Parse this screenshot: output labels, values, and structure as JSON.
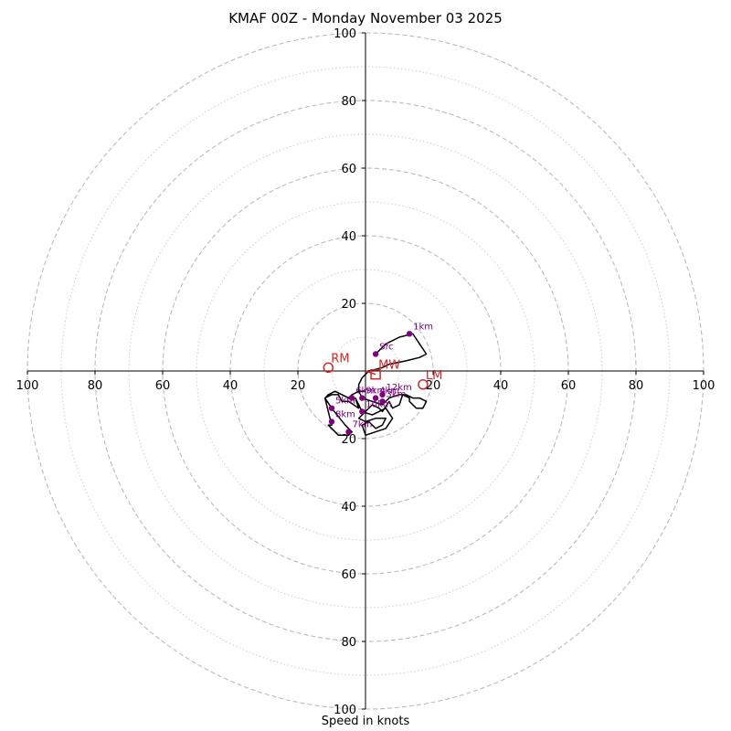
{
  "chart_data": {
    "type": "scatter",
    "title": "KMAF 00Z - Monday November 03 2025",
    "xlabel": "Speed in knots",
    "ylabel": "",
    "xlim": [
      -100,
      100
    ],
    "ylim": [
      -100,
      100
    ],
    "rings_dashed": [
      20,
      40,
      60,
      80,
      100
    ],
    "rings_dotted": [
      10,
      30,
      50,
      70,
      90
    ],
    "x_tick_labels": [
      "100",
      "80",
      "60",
      "40",
      "20",
      "20",
      "40",
      "60",
      "80",
      "100"
    ],
    "x_tick_values": [
      -100,
      -80,
      -60,
      -40,
      -20,
      20,
      40,
      60,
      80,
      100
    ],
    "y_tick_labels": [
      "100",
      "80",
      "60",
      "40",
      "20",
      "20",
      "40",
      "60",
      "80",
      "100"
    ],
    "y_tick_values": [
      100,
      80,
      60,
      40,
      20,
      -20,
      -40,
      -60,
      -80,
      -100
    ],
    "grid": true,
    "colors": {
      "hodograph": "#000000",
      "height_marker": "#800080",
      "motion": "#d62728",
      "grid": "#bbbbbb"
    },
    "hodograph": {
      "x": [
        3,
        6,
        10,
        14,
        18,
        16,
        12,
        7,
        5,
        1,
        -1,
        -2,
        -2,
        -1,
        2,
        5,
        7,
        10,
        12,
        14,
        16,
        18,
        17,
        15,
        13,
        13,
        11,
        10,
        8,
        7,
        5,
        4,
        2,
        0,
        -2,
        0,
        3,
        6,
        5,
        3,
        1,
        -1,
        0,
        3,
        6,
        8,
        6,
        4,
        2,
        -1,
        -3,
        -2,
        -5,
        -7,
        -8,
        -10,
        -12,
        -10,
        -6,
        -4,
        -5,
        -8,
        -11,
        -10,
        -11,
        -12,
        -11,
        -9,
        -5,
        -4,
        -2,
        0
      ],
      "y": [
        5,
        8,
        10,
        11,
        5,
        4,
        3,
        2,
        1,
        0,
        -2,
        -4,
        -6,
        -8,
        -9,
        -10,
        -8,
        -7,
        -7,
        -8,
        -8,
        -9,
        -11,
        -11,
        -9,
        -8,
        -7,
        -10,
        -11,
        -9,
        -12,
        -11,
        -10,
        -12,
        -14,
        -15,
        -14,
        -14,
        -16,
        -17,
        -15,
        -16,
        -19,
        -18,
        -17,
        -14,
        -11,
        -12,
        -13,
        -12,
        -8,
        -11,
        -9,
        -9,
        -7,
        -7,
        -8,
        -11,
        -16,
        -18,
        -19,
        -19,
        -16,
        -16,
        -12,
        -8,
        -7,
        -6,
        -8,
        -7,
        -6,
        -6
      ]
    },
    "height_markers": [
      {
        "label": "Sfc",
        "x": 3,
        "y": 5
      },
      {
        "label": "1km",
        "x": 13,
        "y": 11
      },
      {
        "label": "3km",
        "x": 5,
        "y": -9
      },
      {
        "label": "4km",
        "x": 3,
        "y": -8
      },
      {
        "label": "5km",
        "x": -10,
        "y": -11
      },
      {
        "label": "6km",
        "x": -4,
        "y": -8
      },
      {
        "label": "7km",
        "x": -5,
        "y": -18
      },
      {
        "label": "8km",
        "x": -10,
        "y": -15
      },
      {
        "label": "9km",
        "x": -1,
        "y": -8
      },
      {
        "label": "10km",
        "x": -1,
        "y": -12
      },
      {
        "label": "12km",
        "x": 5,
        "y": -7
      }
    ],
    "storm_motion": [
      {
        "label": "RM",
        "x": -11,
        "y": 1,
        "marker": "circle"
      },
      {
        "label": "MW",
        "x": 3,
        "y": -1,
        "marker": "square"
      },
      {
        "label": "LM",
        "x": 17,
        "y": -4,
        "marker": "circle"
      }
    ]
  }
}
